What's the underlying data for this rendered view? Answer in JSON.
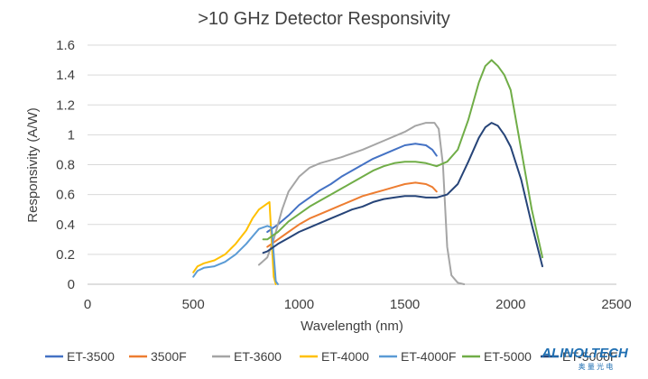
{
  "chart_data": {
    "type": "line",
    "title": ">10 GHz Detector Responsivity",
    "xlabel": "Wavelength (nm)",
    "ylabel": "Responsivity (A/W)",
    "xlim": [
      0,
      2500
    ],
    "ylim": [
      0,
      1.6
    ],
    "xticks": [
      "0",
      "500",
      "1000",
      "1500",
      "2000",
      "2500"
    ],
    "yticks": [
      "0",
      "0.2",
      "0.4",
      "0.6",
      "0.8",
      "1",
      "1.2",
      "1.4",
      "1.6"
    ],
    "grid": "horizontal",
    "legend_position": "bottom",
    "series": [
      {
        "name": "ET-3500",
        "color": "#4472c4",
        "points": [
          [
            850,
            0.35
          ],
          [
            900,
            0.4
          ],
          [
            950,
            0.46
          ],
          [
            1000,
            0.53
          ],
          [
            1050,
            0.58
          ],
          [
            1100,
            0.63
          ],
          [
            1150,
            0.67
          ],
          [
            1200,
            0.72
          ],
          [
            1250,
            0.76
          ],
          [
            1300,
            0.8
          ],
          [
            1350,
            0.84
          ],
          [
            1400,
            0.87
          ],
          [
            1450,
            0.9
          ],
          [
            1500,
            0.93
          ],
          [
            1550,
            0.94
          ],
          [
            1600,
            0.93
          ],
          [
            1630,
            0.9
          ],
          [
            1650,
            0.86
          ]
        ]
      },
      {
        "name": "3500F",
        "color": "#ed7d31",
        "points": [
          [
            850,
            0.25
          ],
          [
            900,
            0.3
          ],
          [
            950,
            0.35
          ],
          [
            1000,
            0.4
          ],
          [
            1050,
            0.44
          ],
          [
            1100,
            0.47
          ],
          [
            1150,
            0.5
          ],
          [
            1200,
            0.53
          ],
          [
            1250,
            0.56
          ],
          [
            1300,
            0.59
          ],
          [
            1350,
            0.61
          ],
          [
            1400,
            0.63
          ],
          [
            1450,
            0.65
          ],
          [
            1500,
            0.67
          ],
          [
            1550,
            0.68
          ],
          [
            1600,
            0.67
          ],
          [
            1630,
            0.65
          ],
          [
            1650,
            0.62
          ]
        ]
      },
      {
        "name": "ET-3600",
        "color": "#a5a5a5",
        "points": [
          [
            810,
            0.13
          ],
          [
            850,
            0.18
          ],
          [
            880,
            0.3
          ],
          [
            920,
            0.5
          ],
          [
            950,
            0.62
          ],
          [
            1000,
            0.72
          ],
          [
            1050,
            0.78
          ],
          [
            1100,
            0.81
          ],
          [
            1200,
            0.85
          ],
          [
            1300,
            0.9
          ],
          [
            1400,
            0.96
          ],
          [
            1500,
            1.02
          ],
          [
            1550,
            1.06
          ],
          [
            1600,
            1.08
          ],
          [
            1640,
            1.08
          ],
          [
            1660,
            1.04
          ],
          [
            1680,
            0.8
          ],
          [
            1700,
            0.25
          ],
          [
            1720,
            0.06
          ],
          [
            1750,
            0.01
          ],
          [
            1780,
            0
          ]
        ]
      },
      {
        "name": "ET-4000",
        "color": "#ffc000",
        "points": [
          [
            500,
            0.08
          ],
          [
            520,
            0.12
          ],
          [
            550,
            0.14
          ],
          [
            600,
            0.16
          ],
          [
            650,
            0.2
          ],
          [
            700,
            0.27
          ],
          [
            750,
            0.36
          ],
          [
            780,
            0.44
          ],
          [
            810,
            0.5
          ],
          [
            850,
            0.54
          ],
          [
            860,
            0.55
          ],
          [
            870,
            0.3
          ],
          [
            880,
            0.05
          ],
          [
            890,
            0
          ]
        ]
      },
      {
        "name": "ET-4000F",
        "color": "#5b9bd5",
        "points": [
          [
            500,
            0.05
          ],
          [
            520,
            0.09
          ],
          [
            550,
            0.11
          ],
          [
            600,
            0.12
          ],
          [
            650,
            0.15
          ],
          [
            700,
            0.2
          ],
          [
            750,
            0.27
          ],
          [
            780,
            0.32
          ],
          [
            810,
            0.37
          ],
          [
            850,
            0.39
          ],
          [
            870,
            0.38
          ],
          [
            880,
            0.2
          ],
          [
            890,
            0.02
          ],
          [
            900,
            0
          ]
        ]
      },
      {
        "name": "ET-5000",
        "color": "#70ad47",
        "points": [
          [
            830,
            0.3
          ],
          [
            850,
            0.3
          ],
          [
            900,
            0.35
          ],
          [
            950,
            0.42
          ],
          [
            1000,
            0.47
          ],
          [
            1050,
            0.52
          ],
          [
            1100,
            0.56
          ],
          [
            1150,
            0.6
          ],
          [
            1200,
            0.64
          ],
          [
            1250,
            0.68
          ],
          [
            1300,
            0.72
          ],
          [
            1350,
            0.76
          ],
          [
            1400,
            0.79
          ],
          [
            1450,
            0.81
          ],
          [
            1500,
            0.82
          ],
          [
            1550,
            0.82
          ],
          [
            1600,
            0.81
          ],
          [
            1650,
            0.79
          ],
          [
            1700,
            0.82
          ],
          [
            1750,
            0.9
          ],
          [
            1800,
            1.1
          ],
          [
            1850,
            1.35
          ],
          [
            1880,
            1.46
          ],
          [
            1910,
            1.5
          ],
          [
            1940,
            1.46
          ],
          [
            1970,
            1.4
          ],
          [
            2000,
            1.3
          ],
          [
            2050,
            0.9
          ],
          [
            2100,
            0.5
          ],
          [
            2150,
            0.18
          ]
        ]
      },
      {
        "name": "ET-5000F",
        "color": "#264478",
        "points": [
          [
            830,
            0.21
          ],
          [
            850,
            0.22
          ],
          [
            900,
            0.27
          ],
          [
            950,
            0.31
          ],
          [
            1000,
            0.35
          ],
          [
            1050,
            0.38
          ],
          [
            1100,
            0.41
          ],
          [
            1150,
            0.44
          ],
          [
            1200,
            0.47
          ],
          [
            1250,
            0.5
          ],
          [
            1300,
            0.52
          ],
          [
            1350,
            0.55
          ],
          [
            1400,
            0.57
          ],
          [
            1450,
            0.58
          ],
          [
            1500,
            0.59
          ],
          [
            1550,
            0.59
          ],
          [
            1600,
            0.58
          ],
          [
            1650,
            0.58
          ],
          [
            1700,
            0.6
          ],
          [
            1750,
            0.67
          ],
          [
            1800,
            0.82
          ],
          [
            1850,
            0.98
          ],
          [
            1880,
            1.05
          ],
          [
            1910,
            1.08
          ],
          [
            1940,
            1.06
          ],
          [
            1970,
            1.0
          ],
          [
            2000,
            0.92
          ],
          [
            2050,
            0.7
          ],
          [
            2100,
            0.4
          ],
          [
            2150,
            0.12
          ]
        ]
      }
    ]
  },
  "watermark": {
    "brand": "ALINOLTECH",
    "sub": "奥 量 光 电"
  }
}
